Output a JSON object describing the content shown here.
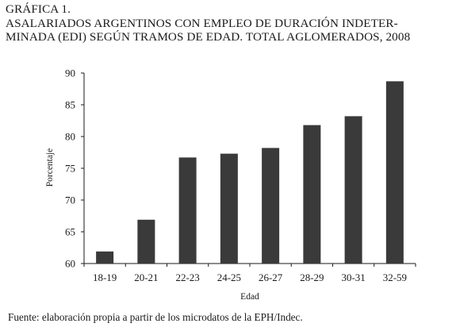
{
  "header": {
    "label": "GRÁFICA 1.",
    "title_line1": "ASALARIADOS ARGENTINOS CON EMPLEO DE DURACIÓN INDETER-",
    "title_line2": "MINADA (EDI) SEGÚN TRAMOS DE EDAD. TOTAL AGLOMERADOS, 2008"
  },
  "source": "Fuente: elaboración propia a partir de los microdatos de la EPH/Indec.",
  "chart_data": {
    "type": "bar",
    "title": "ASALARIADOS ARGENTINOS CON EMPLEO DE DURACIÓN INDETERMINADA (EDI) SEGÚN TRAMOS DE EDAD. TOTAL AGLOMERADOS, 2008",
    "xlabel": "Edad",
    "ylabel": "Porcentaje",
    "categories": [
      "18-19",
      "20-21",
      "22-23",
      "24-25",
      "26-27",
      "28-29",
      "30-31",
      "32-59"
    ],
    "values": [
      61.9,
      66.9,
      76.7,
      77.3,
      78.2,
      81.8,
      83.2,
      88.7
    ],
    "ylim": [
      60,
      90
    ],
    "yticks": [
      60,
      65,
      70,
      75,
      80,
      85,
      90
    ],
    "grid": false,
    "legend": "none",
    "bar_color": "#3a3a3a"
  }
}
